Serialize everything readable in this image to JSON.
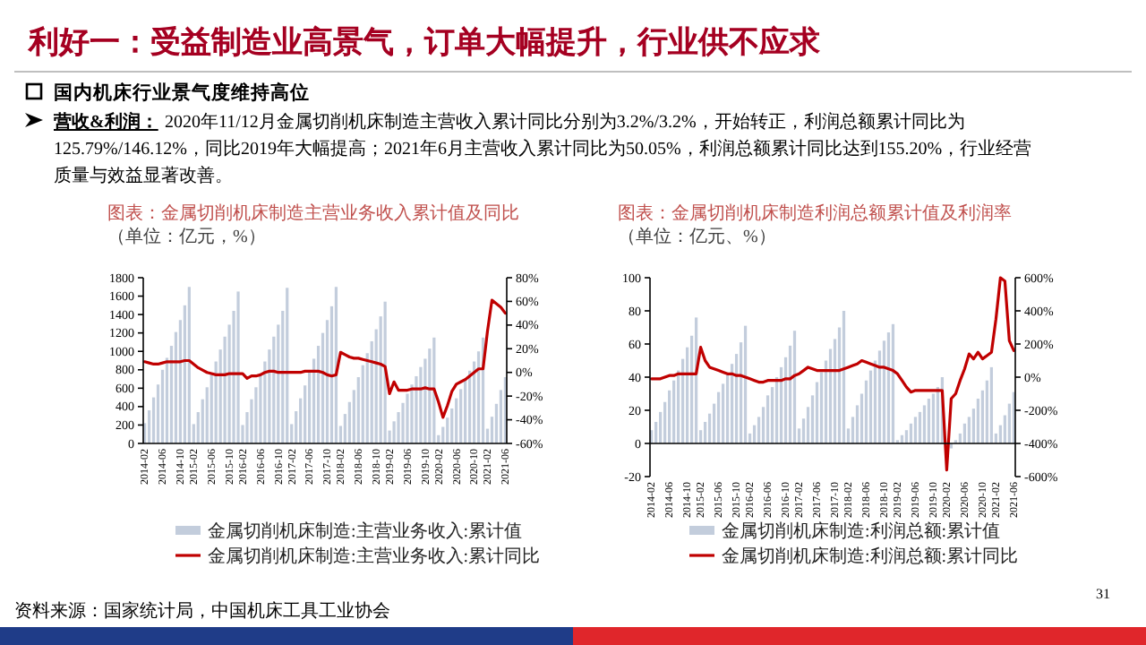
{
  "chart_data": [
    {
      "type": "other",
      "title": "利好一：受益制造业高景气，订单大幅提升，行业供不应求",
      "annotations": [
        "国内机床行业景气度维持高位",
        "营收&利润：",
        "2020年11/12月金属切削机床制造主营收入累计同比分别为3.2%/3.2%，开始转正，利润总额累计同比为",
        "125.79%/146.12%，同比2019年大幅提高；2021年6月主营收入累计同比为50.05%，利润总额累计同比达到155.20%，行业经营",
        "质量与效益显著改善。",
        "资料来源：国家统计局，中国机床工具工业协会",
        "31"
      ]
    },
    {
      "type": "bar",
      "title": "图表：金属切削机床制造主营业务收入累计值及同比",
      "subtitle": "（单位：亿元，%）",
      "legend": "bottom",
      "categories": [
        "2014-02",
        null,
        null,
        null,
        "2014-06",
        null,
        null,
        null,
        "2014-10",
        null,
        null,
        "2015-02",
        null,
        null,
        null,
        "2015-06",
        null,
        null,
        null,
        "2015-10",
        null,
        null,
        "2016-02",
        null,
        null,
        null,
        "2016-06",
        null,
        null,
        null,
        "2016-10",
        null,
        null,
        "2017-02",
        null,
        null,
        null,
        "2017-06",
        null,
        null,
        null,
        "2017-10",
        null,
        null,
        "2018-02",
        null,
        null,
        null,
        "2018-06",
        null,
        null,
        null,
        "2018-10",
        null,
        null,
        "2019-02",
        null,
        null,
        null,
        "2019-06",
        null,
        null,
        null,
        "2019-10",
        null,
        null,
        "2020-02",
        null,
        null,
        null,
        "2020-06",
        null,
        null,
        null,
        "2020-10",
        null,
        null,
        "2021-02",
        null,
        null,
        null,
        "2021-06"
      ],
      "series": [
        {
          "name": "金属切削机床制造:主营业务收入:累计值",
          "color": "#c3cddc",
          "values": [
            220,
            360,
            500,
            640,
            800,
            930,
            1060,
            1210,
            1340,
            1500,
            1700,
            210,
            340,
            480,
            610,
            760,
            890,
            1020,
            1160,
            1290,
            1440,
            1650,
            200,
            340,
            480,
            610,
            760,
            890,
            1020,
            1160,
            1290,
            1440,
            1690,
            210,
            350,
            490,
            630,
            780,
            920,
            1060,
            1200,
            1340,
            1490,
            1700,
            190,
            320,
            450,
            580,
            720,
            850,
            980,
            1110,
            1240,
            1380,
            1540,
            140,
            240,
            340,
            440,
            540,
            640,
            730,
            830,
            920,
            1030,
            1150,
            90,
            180,
            280,
            380,
            490,
            590,
            690,
            790,
            890,
            1000,
            1150,
            160,
            290,
            430,
            580,
            720
          ]
        },
        {
          "name": "金属切削机床制造:主营业务收入:累计同比",
          "type": "line",
          "axis": "y2",
          "color": "#c00000",
          "values": [
            9,
            8,
            7,
            7,
            8,
            9,
            9,
            9,
            9,
            10,
            10,
            7,
            4,
            2,
            0,
            -1,
            -2,
            -2,
            -2,
            -1,
            -1,
            -1,
            -1,
            -5,
            -3,
            -3,
            -2,
            0,
            1,
            1,
            0,
            0,
            0,
            0,
            0,
            0,
            1,
            1,
            1,
            1,
            0,
            -2,
            -3,
            -2,
            17,
            15,
            13,
            12,
            12,
            11,
            10,
            9,
            8,
            7,
            5,
            -18,
            -8,
            -15,
            -15,
            -15,
            -14,
            -14,
            -14,
            -13,
            -14,
            -14,
            -25,
            -38,
            -28,
            -16,
            -10,
            -8,
            -6,
            -3,
            0,
            3,
            3,
            35,
            61,
            58,
            55,
            50
          ]
        }
      ],
      "ylim": [
        0,
        1800
      ],
      "yticks": [
        0,
        200,
        400,
        600,
        800,
        1000,
        1200,
        1400,
        1600,
        1800
      ],
      "y2lim": [
        -60,
        80
      ],
      "y2ticks": [
        {
          "value": -60,
          "label": "-60%"
        },
        {
          "value": -40,
          "label": "-40%"
        },
        {
          "value": -20,
          "label": "-20%"
        },
        {
          "value": 0,
          "label": "0%"
        },
        {
          "value": 20,
          "label": "20%"
        },
        {
          "value": 40,
          "label": "40%"
        },
        {
          "value": 60,
          "label": "60%"
        },
        {
          "value": 80,
          "label": "80%"
        }
      ]
    },
    {
      "type": "bar",
      "title": "图表：金属切削机床制造利润总额累计值及利润率",
      "subtitle": "（单位：亿元、%）",
      "legend": "bottom",
      "categories": [
        "2014-02",
        null,
        null,
        null,
        "2014-06",
        null,
        null,
        null,
        "2014-10",
        null,
        null,
        "2015-02",
        null,
        null,
        null,
        "2015-06",
        null,
        null,
        null,
        "2015-10",
        null,
        null,
        "2016-02",
        null,
        null,
        null,
        "2016-06",
        null,
        null,
        null,
        "2016-10",
        null,
        null,
        "2017-02",
        null,
        null,
        null,
        "2017-06",
        null,
        null,
        null,
        "2017-10",
        null,
        null,
        "2018-02",
        null,
        null,
        null,
        "2018-06",
        null,
        null,
        null,
        "2018-10",
        null,
        null,
        "2019-02",
        null,
        null,
        null,
        "2019-06",
        null,
        null,
        null,
        "2019-10",
        null,
        null,
        "2020-02",
        null,
        null,
        null,
        "2020-06",
        null,
        null,
        null,
        "2020-10",
        null,
        null,
        "2021-02",
        null,
        null,
        null,
        "2021-06"
      ],
      "series": [
        {
          "name": "金属切削机床制造:利润总额:累计值",
          "color": "#c3cddc",
          "values": [
            8,
            13,
            19,
            25,
            32,
            38,
            44,
            51,
            58,
            65,
            76,
            8,
            13,
            18,
            24,
            31,
            36,
            42,
            48,
            54,
            61,
            71,
            6,
            11,
            16,
            22,
            29,
            34,
            40,
            46,
            52,
            59,
            68,
            9,
            15,
            22,
            29,
            37,
            43,
            50,
            57,
            63,
            70,
            80,
            9,
            16,
            23,
            30,
            38,
            44,
            50,
            56,
            62,
            67,
            72,
            2,
            5,
            8,
            12,
            16,
            19,
            23,
            27,
            30,
            34,
            40,
            null,
            -3,
            2,
            6,
            12,
            16,
            21,
            27,
            32,
            38,
            46,
            6,
            11,
            17,
            24,
            31
          ]
        },
        {
          "name": "金属切削机床制造:利润总额:累计同比",
          "type": "line",
          "axis": "y2",
          "color": "#c00000",
          "values": [
            -10,
            -10,
            -10,
            0,
            10,
            10,
            20,
            20,
            20,
            20,
            20,
            180,
            100,
            60,
            50,
            40,
            30,
            20,
            20,
            10,
            10,
            0,
            -10,
            -20,
            -30,
            -30,
            -20,
            -20,
            -20,
            -20,
            -10,
            -10,
            10,
            20,
            40,
            60,
            50,
            40,
            40,
            40,
            40,
            40,
            40,
            50,
            60,
            70,
            80,
            100,
            90,
            80,
            70,
            60,
            60,
            50,
            40,
            20,
            -20,
            -60,
            -90,
            -80,
            -80,
            -80,
            -80,
            -80,
            -80,
            -80,
            -560,
            -130,
            -100,
            -20,
            50,
            140,
            110,
            150,
            110,
            130,
            150,
            350,
            600,
            580,
            220,
            160
          ]
        }
      ],
      "ylim": [
        -20,
        100
      ],
      "yticks": [
        -20,
        0,
        20,
        40,
        60,
        80,
        100
      ],
      "y2lim": [
        -600,
        600
      ],
      "y2ticks": [
        {
          "value": -600,
          "label": "-600%"
        },
        {
          "value": -400,
          "label": "-400%"
        },
        {
          "value": -200,
          "label": "-200%"
        },
        {
          "value": 0,
          "label": "0%"
        },
        {
          "value": 200,
          "label": "200%"
        },
        {
          "value": 400,
          "label": "400%"
        },
        {
          "value": 600,
          "label": "600%"
        }
      ]
    }
  ]
}
